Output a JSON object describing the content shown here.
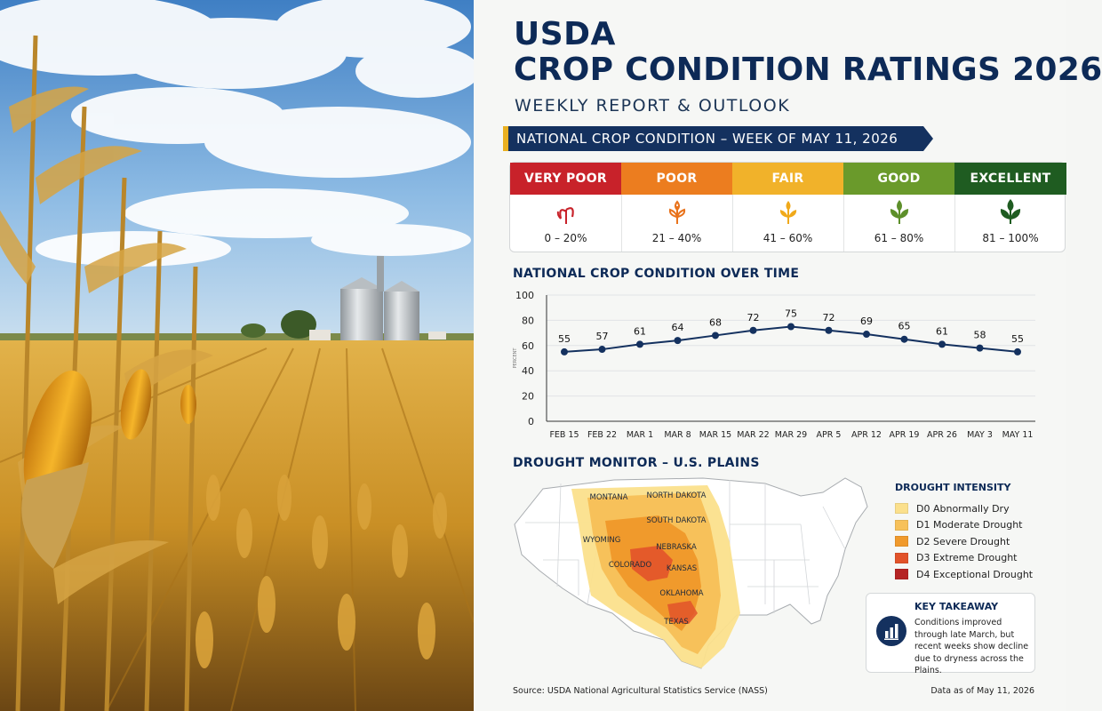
{
  "header": {
    "title_line1": "USDA",
    "title_line2": "CROP CONDITION RATINGS 2026",
    "subtitle": "WEEKLY REPORT & OUTLOOK",
    "banner": "NATIONAL CROP CONDITION – WEEK OF MAY 11, 2026"
  },
  "scale": [
    {
      "label": "VERY POOR",
      "range": "0 – 20%",
      "color": "#c8222a",
      "icon_color": "#c8222a",
      "icon": "wilted-plant-icon"
    },
    {
      "label": "POOR",
      "range": "21 – 40%",
      "color": "#ec7d1f",
      "icon_color": "#e9731c",
      "icon": "dry-plant-icon"
    },
    {
      "label": "FAIR",
      "range": "41 – 60%",
      "color": "#f1b22a",
      "icon_color": "#f0a91a",
      "icon": "plant-icon"
    },
    {
      "label": "GOOD",
      "range": "61 – 80%",
      "color": "#6a9a2b",
      "icon_color": "#5d8f2a",
      "icon": "healthy-plant-icon"
    },
    {
      "label": "EXCELLENT",
      "range": "81 – 100%",
      "color": "#1f5c21",
      "icon_color": "#1f5c21",
      "icon": "thriving-plant-icon"
    }
  ],
  "chart_heading": "NATIONAL CROP CONDITION OVER TIME",
  "chart_data": {
    "type": "line",
    "title": "NATIONAL CROP CONDITION OVER TIME",
    "ylabel": "PERCENT",
    "ylim": [
      0,
      100
    ],
    "yticks": [
      0,
      20,
      40,
      60,
      80,
      100
    ],
    "categories": [
      "FEB 15",
      "FEB 22",
      "MAR 1",
      "MAR 8",
      "MAR 15",
      "MAR 22",
      "MAR 29",
      "APR 5",
      "APR 12",
      "APR 19",
      "APR 26",
      "MAY 3",
      "MAY 11"
    ],
    "series": [
      {
        "values": [
          55,
          57,
          61,
          64,
          68,
          72,
          75,
          72,
          69,
          65,
          61,
          58,
          55
        ],
        "color": "#14315f"
      }
    ],
    "grid": true,
    "legend": "none"
  },
  "map": {
    "heading": "DROUGHT MONITOR – U.S. PLAINS",
    "states": [
      "MONTANA",
      "NORTH DAKOTA",
      "SOUTH DAKOTA",
      "WYOMING",
      "NEBRASKA",
      "COLORADO",
      "KANSAS",
      "OKLAHOMA",
      "TEXAS"
    ],
    "legend_title": "DROUGHT INTENSITY",
    "legend": [
      {
        "code": "D0",
        "label": "D0  Abnormally Dry",
        "color": "#fbe08c"
      },
      {
        "code": "D1",
        "label": "D1  Moderate Drought",
        "color": "#f7c15a"
      },
      {
        "code": "D2",
        "label": "D2  Severe Drought",
        "color": "#f09a2c"
      },
      {
        "code": "D3",
        "label": "D3  Extreme Drought",
        "color": "#e2532a"
      },
      {
        "code": "D4",
        "label": "D4  Exceptional Drought",
        "color": "#b52424"
      }
    ]
  },
  "takeaway": {
    "title": "KEY TAKEAWAY",
    "body": "Conditions improved through late March, but recent weeks show decline due to dryness across the Plains.",
    "icon": "bar-chart-icon"
  },
  "footer": {
    "source": "Source: USDA National Agricultural Statistics Service (NASS)",
    "date": "Data as of May 11, 2026"
  },
  "colors": {
    "navy": "#0d2a57",
    "banner": "#14315f",
    "accent_gold": "#e9b022"
  }
}
